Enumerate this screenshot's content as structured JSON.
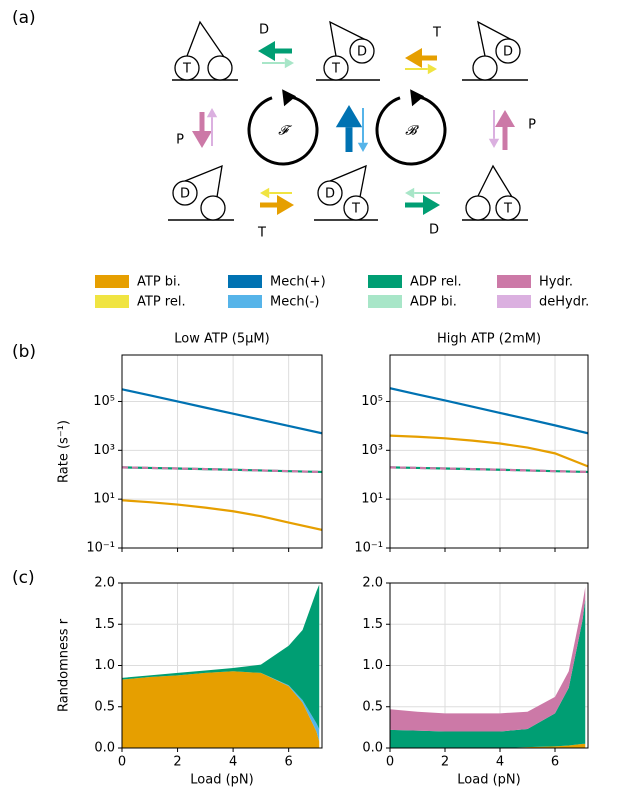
{
  "panel_labels": [
    "(a)",
    "(b)",
    "(c)"
  ],
  "diagram": {
    "arrow_labels": [
      "D",
      "T",
      "P",
      "P",
      "T",
      "D"
    ],
    "cycle_labels": [
      "𝓕",
      "𝓑"
    ],
    "circle_labels": [
      "T",
      "T",
      "D",
      "D",
      "D",
      "D",
      "T",
      "T"
    ]
  },
  "legend": [
    {
      "name": "ATP bi.",
      "color": "#e69f00"
    },
    {
      "name": "ATP rel.",
      "color": "#f0e442"
    },
    {
      "name": "Mech(+)",
      "color": "#0072b2"
    },
    {
      "name": "Mech(-)",
      "color": "#56b4e9"
    },
    {
      "name": "ADP rel.",
      "color": "#009e73"
    },
    {
      "name": "ADP bi.",
      "color": "#a8e6c8"
    },
    {
      "name": "Hydr.",
      "color": "#cc79a7"
    },
    {
      "name": "deHydr.",
      "color": "#dbb0e0"
    }
  ],
  "chart_data": [
    {
      "type": "line",
      "title": "Low ATP (5μM)",
      "y_label": "Rate (s⁻¹)",
      "y_scale": "log",
      "grid": true,
      "xtick_labels": false,
      "x": [
        0,
        1,
        2,
        3,
        4,
        5,
        6,
        7.2
      ],
      "xlim": [
        0,
        7.2
      ],
      "xticks": [
        0,
        2,
        4,
        6
      ],
      "ylim": [
        0.1,
        8000000
      ],
      "yticks": [
        {
          "value": 0.1,
          "label": "10⁻¹"
        },
        {
          "value": 10,
          "label": "10¹"
        },
        {
          "value": 1000,
          "label": "10³"
        },
        {
          "value": 100000,
          "label": "10⁵"
        }
      ],
      "series": [
        {
          "name": "Mech(+)",
          "color": "#0072b2",
          "values": [
            316000,
            178000,
            100000,
            56000,
            31600,
            17800,
            10000,
            5000
          ]
        },
        {
          "name": "ATP bi.",
          "color": "#e69f00",
          "values": [
            9,
            7.5,
            6,
            4.5,
            3.2,
            2,
            1.1,
            0.55
          ]
        },
        {
          "name": "ADP rel.",
          "color": "#009e73",
          "values": [
            200,
            190,
            180,
            170,
            160,
            150,
            140,
            130
          ]
        },
        {
          "name": "Hydr.",
          "color": "#cc79a7",
          "linestyle": "--",
          "values": [
            200,
            190,
            180,
            170,
            160,
            150,
            140,
            130
          ]
        }
      ]
    },
    {
      "type": "line",
      "title": "High ATP (2mM)",
      "y_scale": "log",
      "grid": true,
      "xtick_labels": false,
      "x": [
        0,
        1,
        2,
        3,
        4,
        5,
        6,
        7.2
      ],
      "xlim": [
        0,
        7.2
      ],
      "xticks": [
        0,
        2,
        4,
        6
      ],
      "ylim": [
        0.1,
        8000000
      ],
      "yticks": [
        {
          "value": 0.1,
          "label": "10⁻¹"
        },
        {
          "value": 10,
          "label": "10¹"
        },
        {
          "value": 1000,
          "label": "10³"
        },
        {
          "value": 100000,
          "label": "10⁵"
        }
      ],
      "series": [
        {
          "name": "Mech(+)",
          "color": "#0072b2",
          "values": [
            350000,
            195000,
            110000,
            61000,
            34000,
            19000,
            10500,
            5000
          ]
        },
        {
          "name": "ATP bi.",
          "color": "#e69f00",
          "values": [
            4000,
            3600,
            3100,
            2500,
            1900,
            1300,
            750,
            220
          ]
        },
        {
          "name": "ADP rel.",
          "color": "#009e73",
          "values": [
            200,
            190,
            180,
            170,
            160,
            150,
            140,
            130
          ]
        },
        {
          "name": "Hydr.",
          "color": "#cc79a7",
          "linestyle": "--",
          "values": [
            200,
            190,
            180,
            170,
            160,
            150,
            140,
            130
          ]
        }
      ]
    },
    {
      "type": "stacked_area",
      "y_label": "Randomness r",
      "x_label": "Load (pN)",
      "grid": true,
      "x": [
        0,
        1,
        2,
        3,
        4,
        5,
        6,
        6.5,
        7,
        7.1
      ],
      "xlim": [
        0,
        7.2
      ],
      "xticks": [
        0,
        2,
        4,
        6
      ],
      "ylim": [
        0,
        2
      ],
      "yticks": [
        {
          "value": 0,
          "label": "0.0"
        },
        0.5,
        {
          "value": 1,
          "label": "1.0"
        },
        1.5,
        {
          "value": 2,
          "label": "2.0"
        }
      ],
      "series": [
        {
          "name": "ATP bi.",
          "color": "#e69f00",
          "values": [
            0.83,
            0.86,
            0.88,
            0.91,
            0.93,
            0.91,
            0.75,
            0.55,
            0.2,
            0.08
          ]
        },
        {
          "name": "Mech(-)",
          "color": "#56b4e9",
          "values": [
            0,
            0,
            0,
            0,
            0,
            0,
            0.01,
            0.03,
            0.1,
            0.15
          ]
        },
        {
          "name": "ADP rel.",
          "color": "#009e73",
          "values": [
            0.02,
            0.02,
            0.03,
            0.03,
            0.04,
            0.1,
            0.48,
            0.85,
            1.6,
            1.75
          ]
        }
      ]
    },
    {
      "type": "stacked_area",
      "x_label": "Load (pN)",
      "grid": true,
      "x": [
        0,
        1,
        2,
        3,
        4,
        5,
        6,
        6.5,
        7,
        7.1
      ],
      "xlim": [
        0,
        7.2
      ],
      "xticks": [
        0,
        2,
        4,
        6
      ],
      "ylim": [
        0,
        2
      ],
      "yticks": [
        {
          "value": 0,
          "label": "0.0"
        },
        0.5,
        {
          "value": 1,
          "label": "1.0"
        },
        1.5,
        {
          "value": 2,
          "label": "2.0"
        }
      ],
      "series": [
        {
          "name": "ATP bi.",
          "color": "#e69f00",
          "values": [
            0,
            0,
            0,
            0,
            0,
            0.01,
            0.02,
            0.03,
            0.05,
            0.05
          ]
        },
        {
          "name": "ADP rel.",
          "color": "#009e73",
          "values": [
            0.22,
            0.21,
            0.2,
            0.2,
            0.2,
            0.22,
            0.4,
            0.7,
            1.5,
            1.75
          ]
        },
        {
          "name": "Hydr.",
          "color": "#cc79a7",
          "values": [
            0.25,
            0.23,
            0.22,
            0.22,
            0.22,
            0.21,
            0.2,
            0.2,
            0.2,
            0.15
          ]
        }
      ]
    }
  ]
}
